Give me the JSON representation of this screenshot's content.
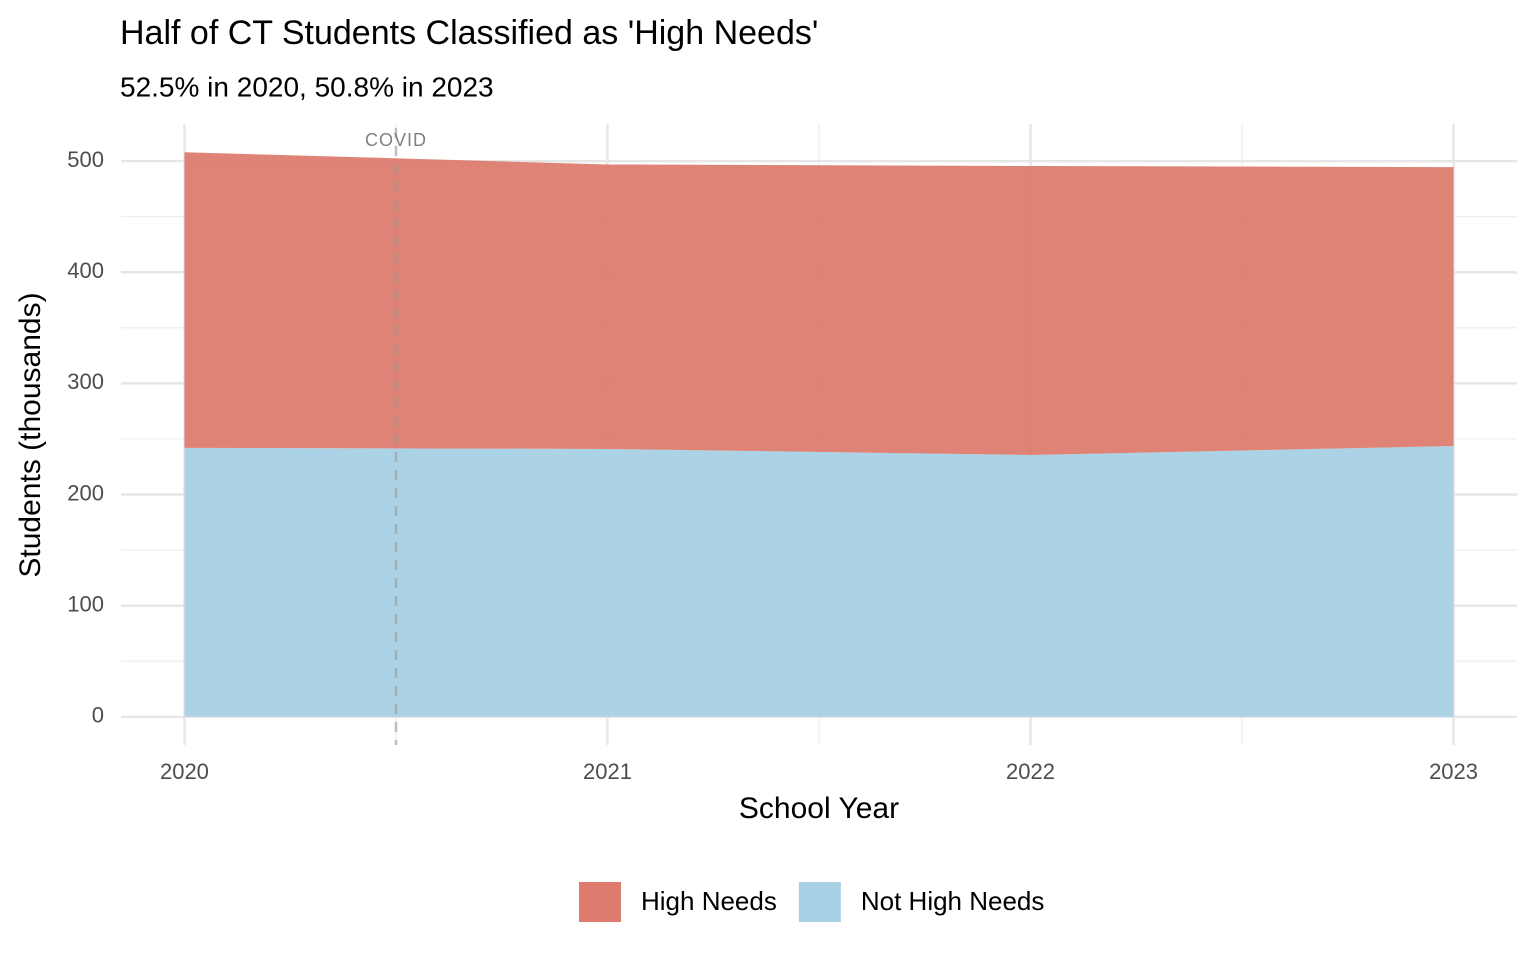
{
  "chart_data": {
    "type": "stacked_area",
    "title": "Half of CT Students Classified as 'High Needs'",
    "subtitle": "52.5% in 2020, 50.8% in 2023",
    "x_label": "School Year",
    "y_label": "Students (thousands)",
    "x": [
      2020,
      2021,
      2022,
      2023
    ],
    "series": [
      {
        "name": "High Needs",
        "color": "#dd7c6f",
        "values": [
          266,
          256,
          260,
          251
        ]
      },
      {
        "name": "Not High Needs",
        "color": "#a8d0e4",
        "values": [
          242,
          241,
          235.6,
          243.6
        ]
      }
    ],
    "xlim": [
      2019.85,
      2023.15
    ],
    "ylim": [
      -25.4,
      533.4
    ],
    "xticks": [
      2020,
      2021,
      2022,
      2023
    ],
    "yticks": [
      0,
      100,
      200,
      300,
      400,
      500
    ],
    "x_minor_ticks": [
      2020.5,
      2021.5,
      2022.5
    ],
    "y_minor_ticks": [
      50,
      150,
      250,
      350,
      450
    ],
    "grid": true,
    "legend": "bottom",
    "annotations": [
      {
        "x": 2020.5,
        "label": "COVID"
      }
    ]
  }
}
